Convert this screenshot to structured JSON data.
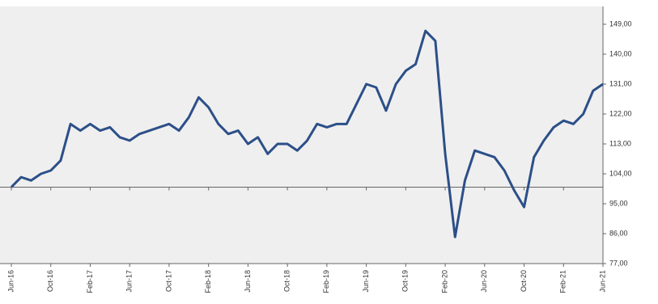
{
  "chart_data": {
    "type": "line",
    "categories": [
      "Jun-16",
      null,
      null,
      null,
      "Oct-16",
      null,
      null,
      null,
      "Feb-17",
      null,
      null,
      null,
      "Jun-17",
      null,
      null,
      null,
      "Oct-17",
      null,
      null,
      null,
      "Feb-18",
      null,
      null,
      null,
      "Jun-18",
      null,
      null,
      null,
      "Oct-18",
      null,
      null,
      null,
      "Feb-19",
      null,
      null,
      null,
      "Jun-19",
      null,
      null,
      null,
      "Oct-19",
      null,
      null,
      null,
      "Feb-20",
      null,
      null,
      null,
      "Jun-20",
      null,
      null,
      null,
      "Oct-20",
      null,
      null,
      null,
      "Feb-21",
      null,
      null,
      null,
      "Jun-21"
    ],
    "series": [
      {
        "color": "#2c4f88",
        "values": [
          100,
          103,
          102,
          104,
          105,
          108,
          119,
          117,
          119,
          117,
          118,
          115,
          114,
          116,
          117,
          118,
          119,
          117,
          121,
          127,
          124,
          119,
          116,
          117,
          113,
          115,
          110,
          113,
          113,
          111,
          114,
          119,
          118,
          119,
          119,
          125,
          131,
          130,
          123,
          131,
          135,
          137,
          147,
          144,
          110,
          85,
          102,
          111,
          110,
          109,
          105,
          99,
          94,
          109,
          114,
          118,
          120,
          119,
          122,
          129,
          131
        ]
      }
    ],
    "ylim": [
      77,
      149
    ],
    "yticks": [
      {
        "value": 77,
        "label": "77,00"
      },
      {
        "value": 86,
        "label": "86,00"
      },
      {
        "value": 95,
        "label": "95,00"
      },
      {
        "value": 104,
        "label": "104,00"
      },
      {
        "value": 113,
        "label": "113,00"
      },
      {
        "value": 122,
        "label": "122,00"
      },
      {
        "value": 131,
        "label": "131,00"
      },
      {
        "value": 140,
        "label": "140,00"
      },
      {
        "value": 149,
        "label": "149,00"
      }
    ],
    "reference_line": 100
  }
}
